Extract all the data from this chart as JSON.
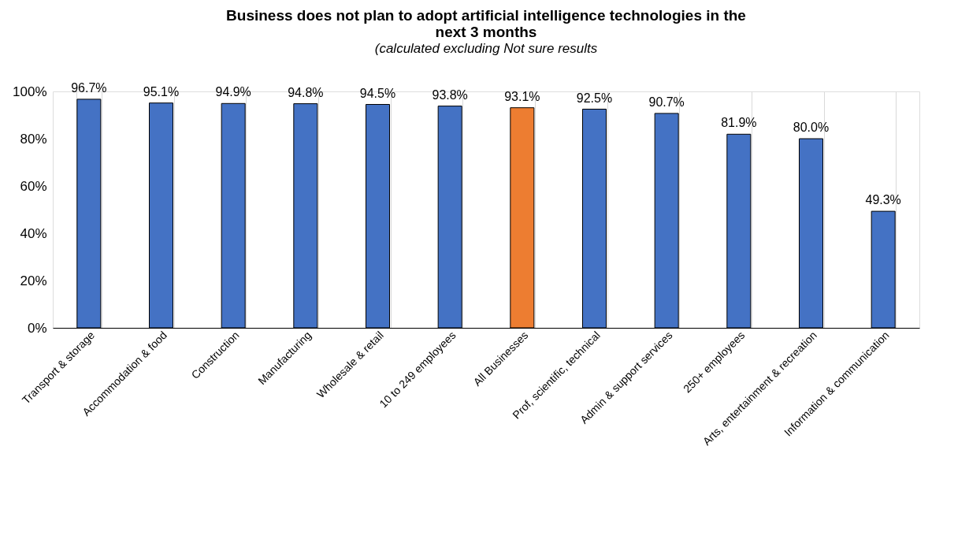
{
  "chart_data": {
    "type": "bar",
    "title": "Business does not plan to adopt artificial intelligence technologies in the next 3 months",
    "subtitle": "(calculated excluding Not sure results",
    "categories": [
      "Transport & storage",
      "Accommodation & food",
      "Construction",
      "Manufacturing",
      "Wholesale & retail",
      "10 to 249 employees",
      "All Businesses",
      "Prof, scientific, technical",
      "Admin & support services",
      "250+ employees",
      "Arts, entertainment & recreation",
      "Information & communication"
    ],
    "values": [
      96.7,
      95.1,
      94.9,
      94.8,
      94.5,
      93.8,
      93.1,
      92.5,
      90.7,
      81.9,
      80.0,
      49.3
    ],
    "colors": [
      "#4472c4",
      "#4472c4",
      "#4472c4",
      "#4472c4",
      "#4472c4",
      "#4472c4",
      "#ed7d31",
      "#4472c4",
      "#4472c4",
      "#4472c4",
      "#4472c4",
      "#4472c4"
    ],
    "value_labels": [
      "96.7%",
      "95.1%",
      "94.9%",
      "94.8%",
      "94.5%",
      "93.8%",
      "93.1%",
      "92.5%",
      "90.7%",
      "81.9%",
      "80.0%",
      "49.3%"
    ],
    "ylim": [
      0,
      100
    ],
    "yticks": [
      {
        "value": 0,
        "label": "0%"
      },
      {
        "value": 20,
        "label": "20%"
      },
      {
        "value": 40,
        "label": "40%"
      },
      {
        "value": 60,
        "label": "60%"
      },
      {
        "value": 80,
        "label": "80%"
      },
      {
        "value": 100,
        "label": "100%"
      }
    ],
    "grid": "x"
  }
}
